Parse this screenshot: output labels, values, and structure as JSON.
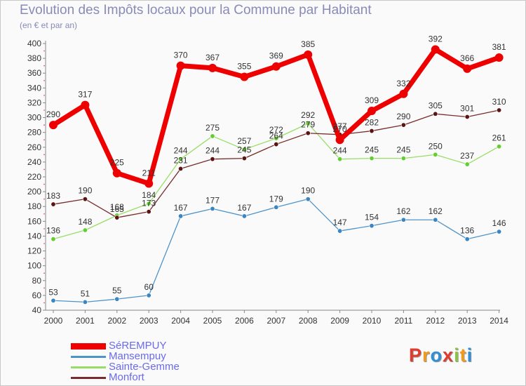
{
  "header": {
    "title": "Evolution des Impôts locaux pour la Commune par Habitant",
    "subtitle": "(en € et par an)"
  },
  "logo": {
    "text": "Proxiti",
    "letters": [
      {
        "ch": "P",
        "color": "#e23b2e"
      },
      {
        "ch": "r",
        "color": "#f29a1b"
      },
      {
        "ch": "o",
        "color": "#2f8fd8"
      },
      {
        "ch": "x",
        "color": "#e23b2e"
      },
      {
        "ch": "i",
        "color": "#8cc63f"
      },
      {
        "ch": "t",
        "color": "#f29a1b"
      },
      {
        "ch": "i",
        "color": "#2f8fd8"
      }
    ]
  },
  "chart_data": {
    "type": "line",
    "title": "Evolution des Impôts locaux pour la Commune par Habitant",
    "subtitle": "(en € et par an)",
    "xlabel": "",
    "ylabel": "",
    "x": [
      "2000",
      "2001",
      "2002",
      "2003",
      "2004",
      "2005",
      "2006",
      "2007",
      "2008",
      "2009",
      "2010",
      "2011",
      "2012",
      "2013",
      "2014"
    ],
    "ylim": [
      40,
      400
    ],
    "yticks": [
      40,
      60,
      80,
      100,
      120,
      140,
      160,
      180,
      200,
      220,
      240,
      260,
      280,
      300,
      320,
      340,
      360,
      380,
      400
    ],
    "grid": false,
    "legend_position": "bottom-left",
    "series": [
      {
        "name": "SéREMPUY",
        "color": "#ee0000",
        "marker_color": "#ee0000",
        "emphasis": true,
        "values": [
          290,
          317,
          225,
          211,
          370,
          367,
          355,
          369,
          385,
          270,
          309,
          332,
          392,
          366,
          381
        ]
      },
      {
        "name": "Mansempuy",
        "color": "#4f94c9",
        "marker_color": "#3a85c2",
        "emphasis": false,
        "values": [
          53,
          51,
          55,
          60,
          167,
          177,
          167,
          179,
          190,
          147,
          154,
          162,
          162,
          136,
          146
        ]
      },
      {
        "name": "Sainte-Gemme",
        "color": "#99dd66",
        "marker_color": "#66cc33",
        "emphasis": false,
        "values": [
          136,
          148,
          168,
          184,
          244,
          275,
          257,
          272,
          292,
          244,
          245,
          245,
          250,
          237,
          261
        ]
      },
      {
        "name": "Monfort",
        "color": "#7a2b2b",
        "marker_color": "#5a1414",
        "emphasis": false,
        "values": [
          183,
          190,
          165,
          173,
          231,
          244,
          245,
          264,
          279,
          277,
          282,
          290,
          305,
          301,
          310
        ]
      }
    ],
    "data_labels": {
      "SéREMPUY": [
        "290",
        "317",
        "225",
        "211",
        "370",
        "367",
        "355",
        "369",
        "385",
        "270",
        "309",
        "332",
        "392",
        "366",
        "381"
      ],
      "Mansempuy": [
        "53",
        "51",
        "55",
        "60",
        "167",
        "177",
        "167",
        "179",
        "190",
        "147",
        "154",
        "162",
        "162",
        "136",
        "146"
      ],
      "Sainte-Gemme": [
        "136",
        "148",
        "168",
        "184",
        "244",
        "275",
        "257",
        "272",
        "292",
        "244",
        "245",
        "245",
        "250",
        "237",
        "261"
      ],
      "Monfort": [
        "183",
        "190",
        "165",
        "173",
        "231",
        "244",
        "245",
        "264",
        "279",
        "277",
        "282",
        "290",
        "305",
        "301",
        "310"
      ]
    }
  }
}
